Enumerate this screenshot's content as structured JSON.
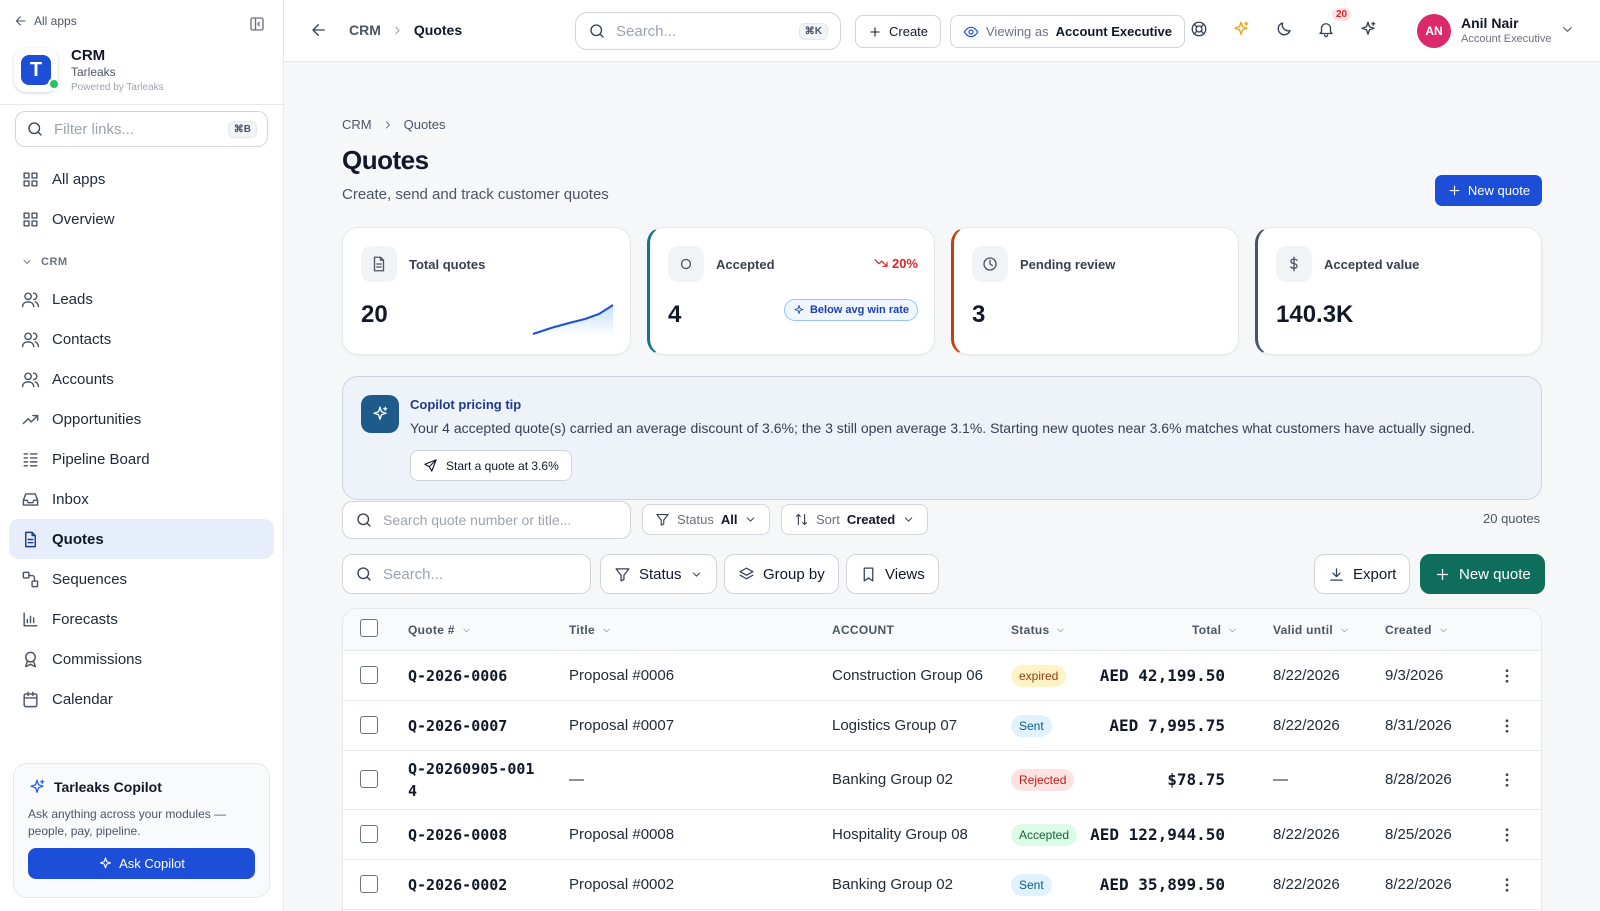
{
  "sidebar": {
    "back_label": "All apps",
    "app": {
      "name": "CRM",
      "org": "Tarleaks",
      "powered": "Powered by Tarleaks",
      "logo_letter": "T"
    },
    "filter_placeholder": "Filter links...",
    "filter_kbd": "⌘B",
    "top_items": [
      {
        "label": "All apps",
        "icon": "grid-icon"
      },
      {
        "label": "Overview",
        "icon": "grid-icon"
      }
    ],
    "section_label": "CRM",
    "items": [
      {
        "label": "Leads",
        "icon": "users-icon"
      },
      {
        "label": "Contacts",
        "icon": "users-icon"
      },
      {
        "label": "Accounts",
        "icon": "users-icon"
      },
      {
        "label": "Opportunities",
        "icon": "trending-up-icon"
      },
      {
        "label": "Pipeline Board",
        "icon": "kanban-icon"
      },
      {
        "label": "Inbox",
        "icon": "inbox-icon"
      },
      {
        "label": "Quotes",
        "icon": "file-icon",
        "active": true
      },
      {
        "label": "Sequences",
        "icon": "route-icon"
      },
      {
        "label": "Forecasts",
        "icon": "bar-chart-icon"
      },
      {
        "label": "Commissions",
        "icon": "award-icon"
      },
      {
        "label": "Calendar",
        "icon": "calendar-icon"
      }
    ],
    "copilot": {
      "title": "Tarleaks Copilot",
      "desc": "Ask anything across your modules — people, pay, pipeline.",
      "button": "Ask Copilot"
    }
  },
  "topbar": {
    "breadcrumb": [
      "CRM",
      "Quotes"
    ],
    "search_placeholder": "Search...",
    "search_kbd": "⌘K",
    "create_label": "Create",
    "viewing_prefix": "Viewing as",
    "viewing_role": "Account Executive",
    "notif_count": "20",
    "user": {
      "initials": "AN",
      "name": "Anil Nair",
      "role": "Account Executive"
    }
  },
  "page": {
    "breadcrumb": [
      "CRM",
      "Quotes"
    ],
    "title": "Quotes",
    "subtitle": "Create, send and track customer quotes",
    "new_quote_label": "New quote"
  },
  "kpis": [
    {
      "label": "Total quotes",
      "value": "20",
      "icon": "file-icon"
    },
    {
      "label": "Accepted",
      "value": "4",
      "icon": "circle-icon",
      "trend": "20%",
      "pill": "Below avg win rate"
    },
    {
      "label": "Pending review",
      "value": "3",
      "icon": "clock-icon"
    },
    {
      "label": "Accepted value",
      "value": "140.3K",
      "icon": "dollar-icon"
    }
  ],
  "tip": {
    "title": "Copilot pricing tip",
    "text": "Your 4 accepted quote(s) carried an average discount of 3.6%; the 3 still open average 3.1%. Starting new quotes near 3.6% matches what customers have actually signed.",
    "button": "Start a quote at 3.6%"
  },
  "filters": {
    "search_placeholder": "Search quote number or title...",
    "status_label": "Status",
    "status_value": "All",
    "sort_label": "Sort",
    "sort_value": "Created",
    "count": "20 quotes"
  },
  "toolbar": {
    "search_placeholder": "Search...",
    "status": "Status",
    "group_by": "Group by",
    "views": "Views",
    "export": "Export",
    "new_quote": "New quote"
  },
  "table": {
    "columns": [
      "Quote #",
      "Title",
      "ACCOUNT",
      "Status",
      "Total",
      "Valid until",
      "Created"
    ],
    "rows": [
      {
        "quote": "Q-2026-0006",
        "title": "Proposal #0006",
        "account": "Construction Group 06",
        "status": "expired",
        "total": "AED 42,199.50",
        "valid": "8/22/2026",
        "created": "9/3/2026"
      },
      {
        "quote": "Q-2026-0007",
        "title": "Proposal #0007",
        "account": "Logistics Group 07",
        "status": "Sent",
        "total": "AED 7,995.75",
        "valid": "8/22/2026",
        "created": "8/31/2026"
      },
      {
        "quote": "Q-20260905-0014",
        "title": "—",
        "account": "Banking Group 02",
        "status": "Rejected",
        "total": "$78.75",
        "valid": "—",
        "created": "8/28/2026"
      },
      {
        "quote": "Q-2026-0008",
        "title": "Proposal #0008",
        "account": "Hospitality Group 08",
        "status": "Accepted",
        "total": "AED 122,944.50",
        "valid": "8/22/2026",
        "created": "8/25/2026"
      },
      {
        "quote": "Q-2026-0002",
        "title": "Proposal #0002",
        "account": "Banking Group 02",
        "status": "Sent",
        "total": "AED 35,899.50",
        "valid": "8/22/2026",
        "created": "8/22/2026"
      }
    ]
  }
}
